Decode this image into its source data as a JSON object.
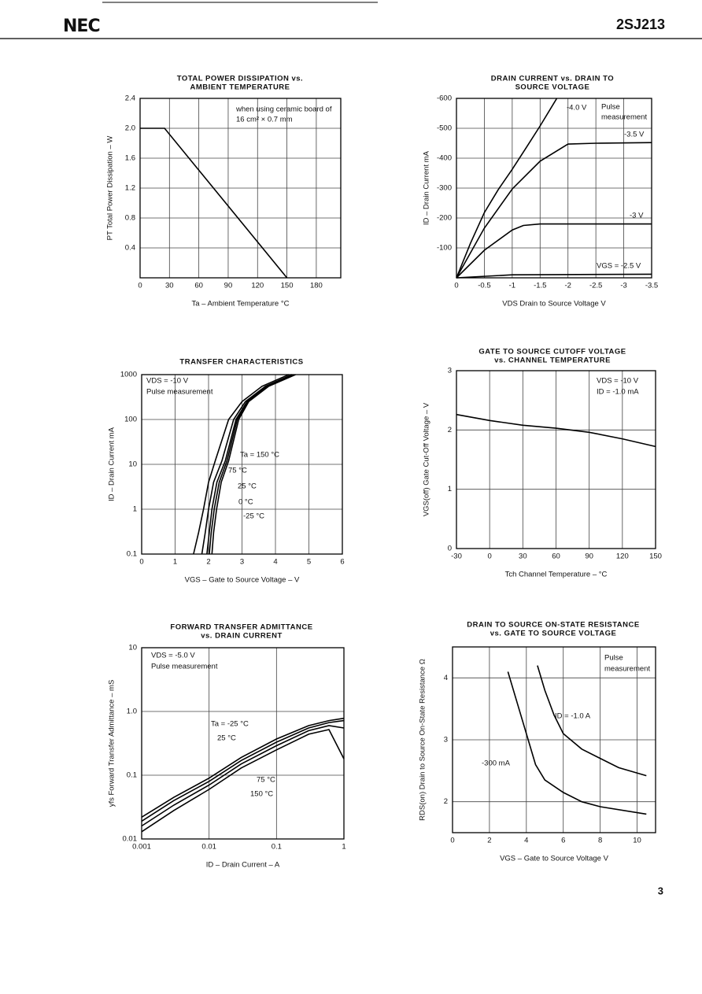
{
  "header": {
    "logo": "NEC",
    "part_number": "2SJ213"
  },
  "page_number": "3",
  "chart_data": [
    {
      "type": "line",
      "title": [
        "TOTAL POWER DISSIPATION vs.",
        "AMBIENT TEMPERATURE"
      ],
      "x_label": "Ta – Ambient Temperature  °C",
      "y_label": "PT  Total Power Dissipation – W",
      "annotations": [
        "when using ceramic board of",
        "16 cm² × 0.7 mm"
      ],
      "x": [
        0,
        25,
        150
      ],
      "values": [
        2,
        2,
        0
      ],
      "color": "#000000",
      "xlim": [
        0,
        205
      ],
      "ylim": [
        0,
        2.4
      ],
      "xticks": [
        0,
        30,
        60,
        90,
        120,
        150,
        180
      ],
      "yticks": [
        0.4,
        0.8,
        1.2,
        1.6,
        {
          "value": 2,
          "label": "2.0"
        },
        2.4
      ],
      "grid": true
    },
    {
      "type": "line",
      "title": [
        "DRAIN CURRENT vs. DRAIN TO",
        "SOURCE VOLTAGE"
      ],
      "x_label": "VDS  Drain to Source Voltage  V",
      "y_label": "ID – Drain Current  mA",
      "annotations": [
        "Pulse",
        "measurement"
      ],
      "series": [
        {
          "name": "-4.0 V",
          "color": "#000000",
          "x": [
            0,
            -0.25,
            -0.5,
            -0.75,
            -1,
            -1.25,
            -1.5,
            -1.8
          ],
          "values": [
            0,
            -115,
            -218,
            -295,
            -363,
            -435,
            -508,
            -600
          ]
        },
        {
          "name": "-3.5 V",
          "color": "#000000",
          "x": [
            0,
            -0.5,
            -1,
            -1.5,
            -2,
            -2.5,
            -3.5
          ],
          "values": [
            0,
            -166,
            -297,
            -390,
            -447,
            -450,
            -452
          ]
        },
        {
          "name": "-3 V",
          "color": "#000000",
          "x": [
            0,
            -0.5,
            -1,
            -1.2,
            -1.5,
            -3.5
          ],
          "values": [
            0,
            -92,
            -160,
            -175,
            -180,
            -180
          ]
        },
        {
          "name": "VGS = -2.5 V",
          "color": "#000000",
          "x": [
            0,
            -1,
            -3.5
          ],
          "values": [
            0,
            -10,
            -12
          ]
        }
      ],
      "xlim": [
        0,
        -3.5
      ],
      "ylim": [
        0,
        -600
      ],
      "xticks": [
        0,
        -0.5,
        -1,
        -1.5,
        -2,
        -2.5,
        -3,
        -3.5
      ],
      "yticks": [
        -100,
        -200,
        -300,
        -400,
        -500,
        -600
      ],
      "grid": true
    },
    {
      "type": "line",
      "title": [
        "TRANSFER CHARACTERISTICS"
      ],
      "x_label": "VGS – Gate to Source Voltage – V",
      "y_label": "ID – Drain Current  mA",
      "annotations": [
        "VDS = -10 V",
        "Pulse measurement"
      ],
      "yscale": "log",
      "series": [
        {
          "name": "Ta = 150 °C",
          "color": "#000000",
          "x": [
            1.55,
            1.7,
            1.85,
            2,
            2.2,
            2.6,
            3,
            3.6,
            4.4
          ],
          "values": [
            0.1,
            0.3,
            1,
            4,
            12,
            100,
            250,
            550,
            1000
          ]
        },
        {
          "name": "75 °C",
          "color": "#000000",
          "x": [
            1.8,
            1.9,
            2,
            2.15,
            2.4,
            2.75,
            3.1,
            3.7,
            4.5
          ],
          "values": [
            0.1,
            0.3,
            1,
            4,
            12,
            100,
            250,
            550,
            1000
          ]
        },
        {
          "name": "25 °C",
          "color": "#000000",
          "x": [
            1.95,
            2.02,
            2.1,
            2.25,
            2.5,
            2.82,
            3.15,
            3.75,
            4.5
          ],
          "values": [
            0.1,
            0.3,
            1,
            4,
            12,
            100,
            250,
            550,
            1000
          ]
        },
        {
          "name": "0 °C",
          "color": "#000000",
          "x": [
            2.02,
            2.08,
            2.17,
            2.32,
            2.55,
            2.86,
            3.18,
            3.78,
            4.55
          ],
          "values": [
            0.1,
            0.3,
            1,
            4,
            12,
            100,
            250,
            550,
            1000
          ]
        },
        {
          "name": "-25 °C",
          "color": "#000000",
          "x": [
            2.1,
            2.15,
            2.24,
            2.38,
            2.6,
            2.9,
            3.2,
            3.8,
            4.6
          ],
          "values": [
            0.1,
            0.3,
            1,
            4,
            12,
            100,
            250,
            550,
            1000
          ]
        }
      ],
      "xlim": [
        0,
        6
      ],
      "ylim": [
        0.1,
        1000
      ],
      "xticks": [
        0,
        1,
        2,
        3,
        4,
        5,
        6
      ],
      "yticks": [
        0.1,
        1,
        10,
        100,
        1000
      ],
      "grid": true
    },
    {
      "type": "line",
      "title": [
        "GATE TO SOURCE CUTOFF VOLTAGE",
        "vs. CHANNEL TEMPERATURE"
      ],
      "x_label": "Tch  Channel Temperature – °C",
      "y_label": "VGS(off)  Gate Cut-Off Voltage – V",
      "annotations": [
        "VDS = -10 V",
        "ID = -1.0 mA"
      ],
      "x": [
        -30,
        0,
        30,
        60,
        90,
        120,
        150
      ],
      "values": [
        2.26,
        2.16,
        2.08,
        2.03,
        1.96,
        1.85,
        1.72
      ],
      "color": "#000000",
      "xlim": [
        -30,
        150
      ],
      "ylim": [
        0,
        3
      ],
      "xticks": [
        -30,
        0,
        30,
        60,
        90,
        120,
        150
      ],
      "yticks": [
        0,
        1,
        2,
        3
      ],
      "grid": true
    },
    {
      "type": "line",
      "title": [
        "FORWARD TRANSFER ADMITTANCE",
        "vs. DRAIN CURRENT"
      ],
      "x_label": "ID – Drain Current – A",
      "y_label": "yfs  Forward Transfer Admittance – mS",
      "annotations": [
        "VDS = -5.0 V",
        "Pulse measurement"
      ],
      "xscale": "log",
      "yscale": "log",
      "series": [
        {
          "name": "Ta = -25 °C",
          "color": "#000000",
          "x": [
            0.001,
            0.003,
            0.01,
            0.03,
            0.1,
            0.3,
            0.6,
            1
          ],
          "values": [
            0.022,
            0.045,
            0.09,
            0.19,
            0.37,
            0.6,
            0.72,
            0.78
          ]
        },
        {
          "name": "25 °C",
          "color": "#000000",
          "x": [
            0.001,
            0.003,
            0.01,
            0.03,
            0.1,
            0.3,
            0.6,
            1
          ],
          "values": [
            0.019,
            0.04,
            0.08,
            0.17,
            0.33,
            0.55,
            0.67,
            0.72
          ]
        },
        {
          "name": "75 °C",
          "color": "#000000",
          "x": [
            0.001,
            0.003,
            0.01,
            0.03,
            0.1,
            0.3,
            0.6,
            1
          ],
          "values": [
            0.016,
            0.034,
            0.07,
            0.15,
            0.29,
            0.5,
            0.6,
            0.55
          ]
        },
        {
          "name": "150 °C",
          "color": "#000000",
          "x": [
            0.001,
            0.003,
            0.01,
            0.03,
            0.1,
            0.3,
            0.6,
            1
          ],
          "values": [
            0.013,
            0.028,
            0.06,
            0.13,
            0.25,
            0.44,
            0.52,
            0.18
          ]
        }
      ],
      "xlim": [
        0.001,
        1
      ],
      "ylim": [
        0.01,
        10
      ],
      "xticks": [
        0.001,
        0.01,
        0.1,
        1
      ],
      "yticks": [
        0.01,
        0.1,
        {
          "value": 1,
          "label": "1.0"
        },
        10
      ],
      "grid": true
    },
    {
      "type": "line",
      "title": [
        "DRAIN TO SOURCE ON-STATE RESISTANCE",
        "vs. GATE TO SOURCE VOLTAGE"
      ],
      "x_label": "VGS – Gate to Source Voltage  V",
      "y_label": "RDS(on)  Drain to Source On-State Resistance  Ω",
      "annotations": [
        "Pulse",
        "measurement"
      ],
      "series": [
        {
          "name": "ID = -1.0 A",
          "color": "#000000",
          "x": [
            4.6,
            5,
            5.5,
            6,
            7,
            8,
            9,
            10.5
          ],
          "values": [
            4.2,
            3.8,
            3.4,
            3.1,
            2.85,
            2.7,
            2.55,
            2.42
          ]
        },
        {
          "name": "-300 mA",
          "color": "#000000",
          "x": [
            3,
            3.5,
            4,
            4.5,
            5,
            6,
            7,
            8,
            10.5
          ],
          "values": [
            4.1,
            3.6,
            3.1,
            2.6,
            2.35,
            2.15,
            2,
            1.92,
            1.8
          ]
        }
      ],
      "xlim": [
        0,
        11
      ],
      "ylim": [
        1.5,
        4.5
      ],
      "xticks": [
        0,
        2,
        4,
        6,
        8,
        10
      ],
      "yticks": [
        2,
        3,
        4
      ],
      "grid": true
    }
  ]
}
